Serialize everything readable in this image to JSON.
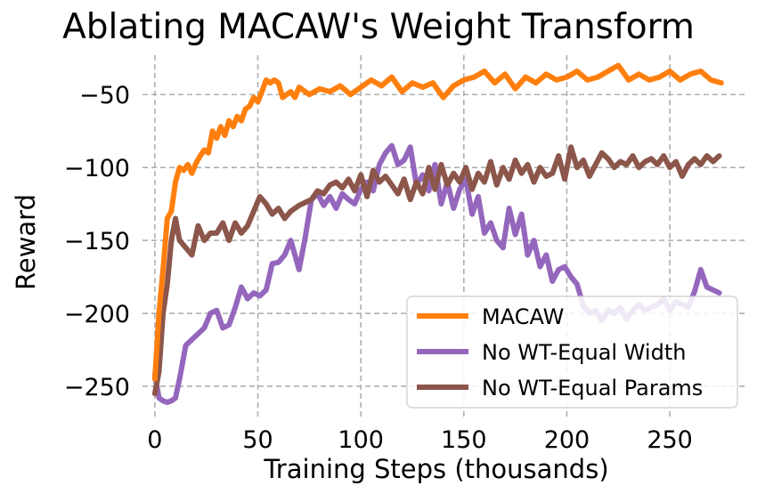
{
  "chart_data": {
    "type": "line",
    "title": "Ablating MACAW's Weight Transform",
    "xlabel": "Training Steps (thousands)",
    "ylabel": "Reward",
    "xlim": [
      -6,
      288
    ],
    "ylim": [
      -272,
      -23
    ],
    "xticks": [
      0,
      50,
      100,
      150,
      200,
      250
    ],
    "yticks": [
      -50,
      -100,
      -150,
      -200,
      -250
    ],
    "xtick_labels": [
      "0",
      "50",
      "100",
      "150",
      "200",
      "250"
    ],
    "ytick_labels": [
      "−50",
      "−100",
      "−150",
      "−200",
      "−250"
    ],
    "grid": true,
    "legend_position": "bottom-right",
    "series": [
      {
        "name": "MACAW",
        "color": "#ff7f0e",
        "x": [
          0,
          2,
          4,
          6,
          8,
          10,
          12,
          14,
          16,
          18,
          20,
          22,
          24,
          26,
          28,
          30,
          32,
          34,
          36,
          38,
          40,
          42,
          44,
          46,
          48,
          50,
          52,
          54,
          56,
          58,
          60,
          62,
          64,
          66,
          68,
          70,
          75,
          80,
          85,
          90,
          95,
          100,
          105,
          110,
          115,
          120,
          125,
          130,
          135,
          140,
          145,
          150,
          155,
          160,
          165,
          170,
          175,
          180,
          185,
          190,
          195,
          200,
          205,
          210,
          215,
          220,
          225,
          230,
          235,
          240,
          245,
          250,
          255,
          260,
          265,
          270,
          275
        ],
        "values": [
          -245,
          -200,
          -170,
          -135,
          -130,
          -110,
          -100,
          -102,
          -98,
          -104,
          -97,
          -92,
          -88,
          -90,
          -75,
          -80,
          -72,
          -78,
          -68,
          -72,
          -65,
          -68,
          -60,
          -58,
          -52,
          -55,
          -48,
          -40,
          -42,
          -40,
          -42,
          -52,
          -50,
          -48,
          -52,
          -45,
          -50,
          -46,
          -48,
          -44,
          -50,
          -45,
          -40,
          -44,
          -38,
          -48,
          -42,
          -45,
          -42,
          -52,
          -44,
          -40,
          -38,
          -34,
          -42,
          -36,
          -46,
          -38,
          -42,
          -36,
          -40,
          -38,
          -34,
          -40,
          -38,
          -34,
          -30,
          -40,
          -36,
          -40,
          -38,
          -34,
          -40,
          -36,
          -34,
          -40,
          -42
        ]
      },
      {
        "name": "No WT-Equal Width",
        "color": "#9467bd",
        "x": [
          0,
          2,
          4,
          6,
          8,
          10,
          12,
          15,
          18,
          21,
          24,
          27,
          30,
          33,
          36,
          39,
          42,
          45,
          48,
          51,
          54,
          57,
          60,
          63,
          66,
          70,
          73,
          76,
          79,
          82,
          85,
          88,
          91,
          94,
          97,
          100,
          103,
          106,
          109,
          112,
          115,
          118,
          121,
          124,
          127,
          130,
          133,
          136,
          139,
          142,
          145,
          148,
          151,
          154,
          157,
          160,
          163,
          166,
          169,
          172,
          175,
          178,
          181,
          184,
          187,
          190,
          193,
          196,
          199,
          202,
          205,
          208,
          211,
          214,
          217,
          220,
          223,
          226,
          229,
          232,
          235,
          238,
          241,
          244,
          247,
          250,
          253,
          256,
          259,
          262,
          265,
          268,
          271,
          274
        ],
        "values": [
          -242,
          -258,
          -260,
          -261,
          -260,
          -258,
          -245,
          -222,
          -218,
          -214,
          -210,
          -200,
          -198,
          -210,
          -208,
          -196,
          -182,
          -190,
          -186,
          -188,
          -184,
          -166,
          -165,
          -160,
          -150,
          -170,
          -148,
          -122,
          -118,
          -126,
          -120,
          -128,
          -118,
          -122,
          -125,
          -115,
          -110,
          -116,
          -98,
          -90,
          -85,
          -98,
          -95,
          -86,
          -112,
          -105,
          -116,
          -98,
          -125,
          -110,
          -128,
          -115,
          -108,
          -132,
          -120,
          -145,
          -138,
          -150,
          -155,
          -128,
          -146,
          -132,
          -160,
          -150,
          -168,
          -160,
          -178,
          -170,
          -168,
          -175,
          -180,
          -195,
          -200,
          -198,
          -205,
          -198,
          -200,
          -196,
          -204,
          -198,
          -194,
          -198,
          -196,
          -194,
          -190,
          -198,
          -192,
          -194,
          -196,
          -185,
          -170,
          -182,
          -184,
          -186
        ]
      },
      {
        "name": "No WT-Equal Params",
        "color": "#8c564b",
        "x": [
          0,
          2,
          4,
          6,
          8,
          10,
          12,
          15,
          18,
          21,
          24,
          27,
          30,
          33,
          36,
          39,
          42,
          45,
          48,
          51,
          54,
          57,
          60,
          63,
          66,
          70,
          73,
          76,
          79,
          82,
          85,
          88,
          91,
          94,
          97,
          100,
          103,
          106,
          109,
          112,
          115,
          118,
          121,
          124,
          127,
          130,
          133,
          136,
          139,
          142,
          145,
          148,
          151,
          154,
          157,
          160,
          163,
          166,
          169,
          172,
          175,
          178,
          181,
          184,
          187,
          190,
          193,
          196,
          199,
          202,
          205,
          208,
          211,
          214,
          217,
          220,
          223,
          226,
          229,
          232,
          235,
          238,
          241,
          244,
          247,
          250,
          253,
          256,
          259,
          262,
          265,
          268,
          271,
          274
        ],
        "values": [
          -255,
          -240,
          -200,
          -180,
          -150,
          -135,
          -150,
          -155,
          -160,
          -140,
          -150,
          -145,
          -145,
          -138,
          -150,
          -138,
          -145,
          -140,
          -130,
          -120,
          -125,
          -132,
          -128,
          -135,
          -130,
          -126,
          -124,
          -122,
          -116,
          -118,
          -112,
          -110,
          -114,
          -108,
          -116,
          -105,
          -120,
          -102,
          -110,
          -106,
          -112,
          -118,
          -108,
          -122,
          -110,
          -118,
          -100,
          -115,
          -98,
          -112,
          -104,
          -110,
          -100,
          -115,
          -104,
          -110,
          -96,
          -112,
          -100,
          -108,
          -95,
          -104,
          -98,
          -110,
          -100,
          -106,
          -104,
          -92,
          -108,
          -86,
          -100,
          -95,
          -106,
          -98,
          -90,
          -94,
          -100,
          -96,
          -98,
          -92,
          -100,
          -96,
          -94,
          -98,
          -92,
          -100,
          -96,
          -106,
          -98,
          -94,
          -98,
          -92,
          -96,
          -92
        ]
      }
    ]
  }
}
